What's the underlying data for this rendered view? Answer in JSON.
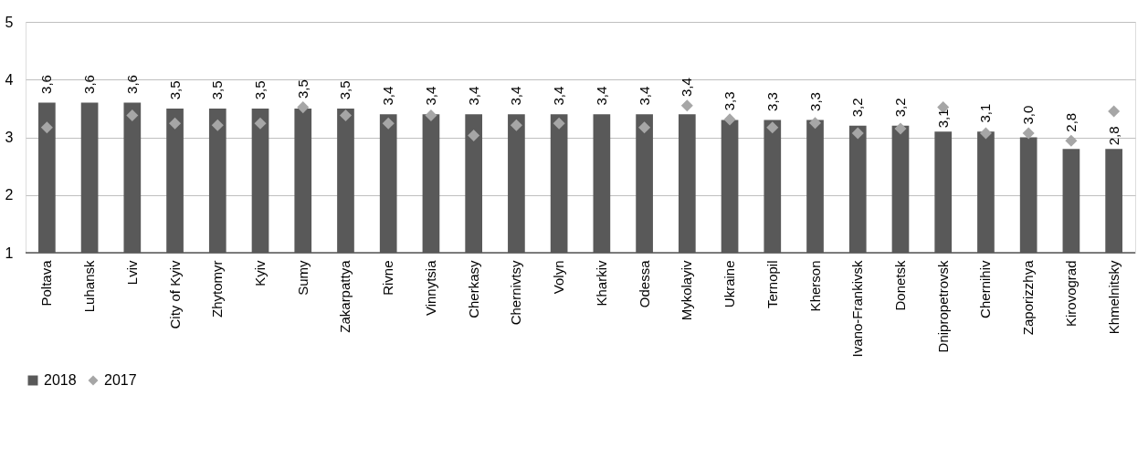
{
  "chart_data": {
    "type": "bar",
    "categories": [
      "Poltava",
      "Luhansk",
      "Lviv",
      "City of Kyiv",
      "Zhytomyr",
      "Kyiv",
      "Sumy",
      "Zakarpattya",
      "Rivne",
      "Vinnytsia",
      "Cherkasy",
      "Chernivtsy",
      "Volyn",
      "Kharkiv",
      "Odessa",
      "Mykolayiv",
      "Ukraine",
      "Ternopil",
      "Kherson",
      "Ivano-Frankivsk",
      "Donetsk",
      "Dnipropetrovsk",
      "Chernihiv",
      "Zaporizzhya",
      "Kirovograd",
      "Khmelnitsky"
    ],
    "series": [
      {
        "name": "2018",
        "color": "#595959",
        "values": [
          3.6,
          3.6,
          3.6,
          3.5,
          3.5,
          3.5,
          3.5,
          3.5,
          3.4,
          3.4,
          3.4,
          3.4,
          3.4,
          3.4,
          3.4,
          3.4,
          3.3,
          3.3,
          3.3,
          3.2,
          3.2,
          3.1,
          3.1,
          3.0,
          2.8,
          2.8
        ],
        "value_labels": [
          "3,6",
          "3,6",
          "3,6",
          "3,5",
          "3,5",
          "3,5",
          "3,5",
          "3,5",
          "3,4",
          "3,4",
          "3,4",
          "3,4",
          "3,4",
          "3,4",
          "3,4",
          "3,4",
          "3,3",
          "3,3",
          "3,3",
          "3,2",
          "3,2",
          "3,1",
          "3,1",
          "3,0",
          "2,8",
          "2,8"
        ]
      },
      {
        "name": "2017",
        "type": "scatter",
        "color": "#a6a6a6",
        "marker": "diamond",
        "values": [
          3.17,
          null,
          3.38,
          3.24,
          3.21,
          3.24,
          3.52,
          3.38,
          3.24,
          3.38,
          3.03,
          3.21,
          3.24,
          null,
          3.17,
          3.55,
          3.31,
          3.17,
          3.25,
          3.07,
          3.15,
          3.52,
          3.07,
          3.07,
          2.94,
          3.45
        ]
      }
    ],
    "ylim": [
      1,
      5
    ],
    "yticks": [
      1,
      2,
      3,
      4,
      5
    ],
    "grid": "y",
    "legend": "bottom"
  }
}
